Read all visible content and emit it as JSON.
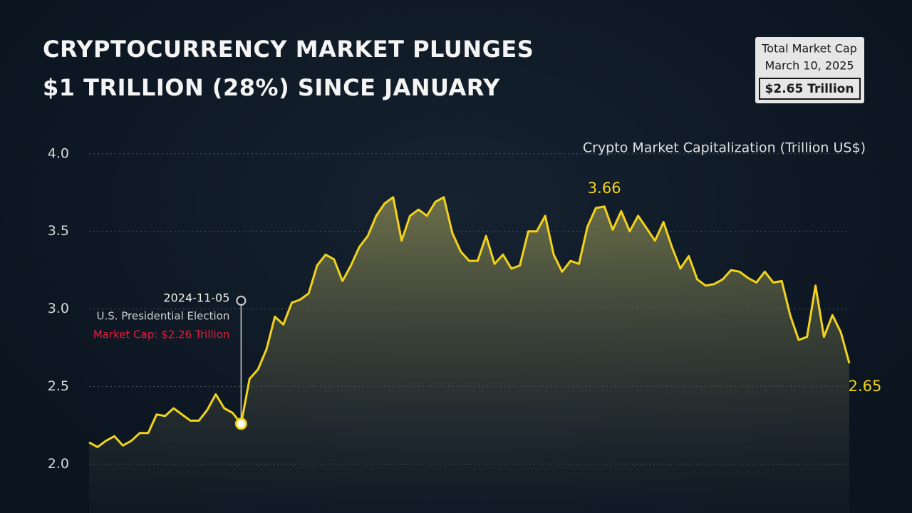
{
  "chart_data": {
    "type": "area-line",
    "title": "CRYPTOCURRENCY MARKET PLUNGES $1 TRILLION (28%) SINCE JANUARY",
    "info_box": {
      "title": "Total Market Cap",
      "date": "March 10, 2025",
      "value": "$2.65 Trillion"
    },
    "y_label": "Crypto Market Capitalization (Trillion US$)",
    "annotation": {
      "event": "U.S. Presidential Election",
      "text": "Market Cap: $2.26 Trillion"
    },
    "categories": [
      null,
      null,
      null,
      null,
      null,
      null,
      null,
      null,
      null,
      null,
      null,
      null,
      null,
      null,
      null,
      null,
      null,
      null,
      "2024-11-05",
      null,
      null,
      null,
      null,
      null,
      null,
      null,
      null,
      null,
      null,
      null,
      null,
      null,
      null,
      null,
      null,
      null,
      null,
      null,
      null,
      null,
      null,
      null,
      null,
      null,
      null,
      null,
      null,
      null,
      null,
      null,
      null,
      null,
      null,
      null,
      null,
      null,
      null,
      null,
      null,
      null,
      null,
      null,
      null,
      null,
      null,
      null,
      null,
      null,
      null,
      null,
      null,
      null,
      null,
      null,
      null,
      null,
      null,
      null,
      null,
      null,
      null,
      null,
      null,
      null,
      null,
      null,
      null,
      null,
      null,
      null,
      null
    ],
    "values": [
      2.14,
      2.11,
      2.15,
      2.18,
      2.12,
      2.15,
      2.2,
      2.2,
      2.32,
      2.31,
      2.36,
      2.32,
      2.28,
      2.28,
      2.35,
      2.45,
      2.36,
      2.33,
      2.26,
      2.55,
      2.61,
      2.74,
      2.95,
      2.9,
      3.04,
      3.06,
      3.1,
      3.28,
      3.35,
      3.32,
      3.18,
      3.28,
      3.4,
      3.47,
      3.6,
      3.68,
      3.72,
      3.44,
      3.6,
      3.64,
      3.6,
      3.69,
      3.72,
      3.49,
      3.37,
      3.31,
      3.31,
      3.47,
      3.29,
      3.35,
      3.26,
      3.28,
      3.5,
      3.5,
      3.6,
      3.35,
      3.24,
      3.31,
      3.29,
      3.53,
      3.65,
      3.66,
      3.51,
      3.63,
      3.5,
      3.6,
      3.52,
      3.44,
      3.56,
      3.4,
      3.26,
      3.34,
      3.19,
      3.15,
      3.16,
      3.19,
      3.25,
      3.24,
      3.2,
      3.17,
      3.24,
      3.17,
      3.18,
      2.96,
      2.8,
      2.82,
      3.15,
      2.82,
      2.96,
      2.85,
      2.65
    ],
    "labeled_points": [
      61,
      90
    ],
    "color": "#f2d31b",
    "ylim": [
      1.685,
      4.1
    ],
    "yticks": [
      {
        "value": 2,
        "label": "2.0"
      },
      {
        "value": 2.5,
        "label": "2.5"
      },
      {
        "value": 3,
        "label": "3.0"
      },
      {
        "value": 3.5,
        "label": "3.5"
      },
      {
        "value": 4,
        "label": "4.0"
      }
    ],
    "grid": true
  }
}
